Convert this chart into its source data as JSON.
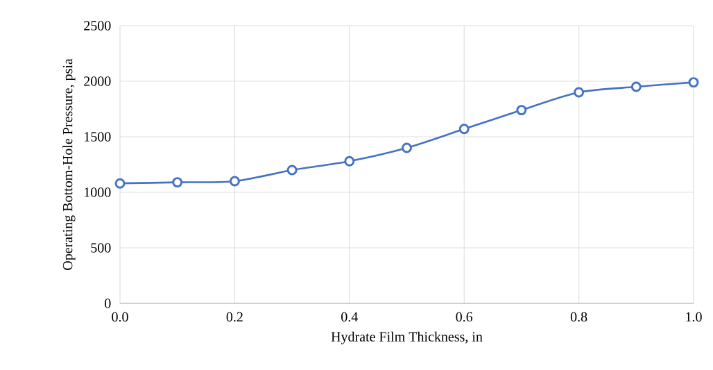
{
  "chart_data": {
    "type": "line",
    "xlabel": "Hydrate Film Thickness, in",
    "ylabel": "Operating Bottom-Hole Pressure, psia",
    "x": [
      0.0,
      0.1,
      0.2,
      0.3,
      0.4,
      0.5,
      0.6,
      0.7,
      0.8,
      0.9,
      1.0
    ],
    "series": [
      {
        "color": "#4472c4",
        "values": [
          1080,
          1090,
          1100,
          1200,
          1280,
          1400,
          1570,
          1740,
          1900,
          1950,
          1990
        ]
      }
    ],
    "xlim": [
      0,
      1
    ],
    "ylim": [
      0,
      2500
    ],
    "xticks": [
      {
        "value": 0,
        "label": "0.0"
      },
      {
        "value": 0.2,
        "label": "0.2"
      },
      {
        "value": 0.4,
        "label": "0.4"
      },
      {
        "value": 0.6,
        "label": "0.6"
      },
      {
        "value": 0.8,
        "label": "0.8"
      },
      {
        "value": 1,
        "label": "1.0"
      }
    ],
    "yticks": [
      0,
      500,
      1000,
      1500,
      2000,
      2500
    ],
    "grid": true,
    "marker": "circle",
    "line_style": "solid"
  }
}
